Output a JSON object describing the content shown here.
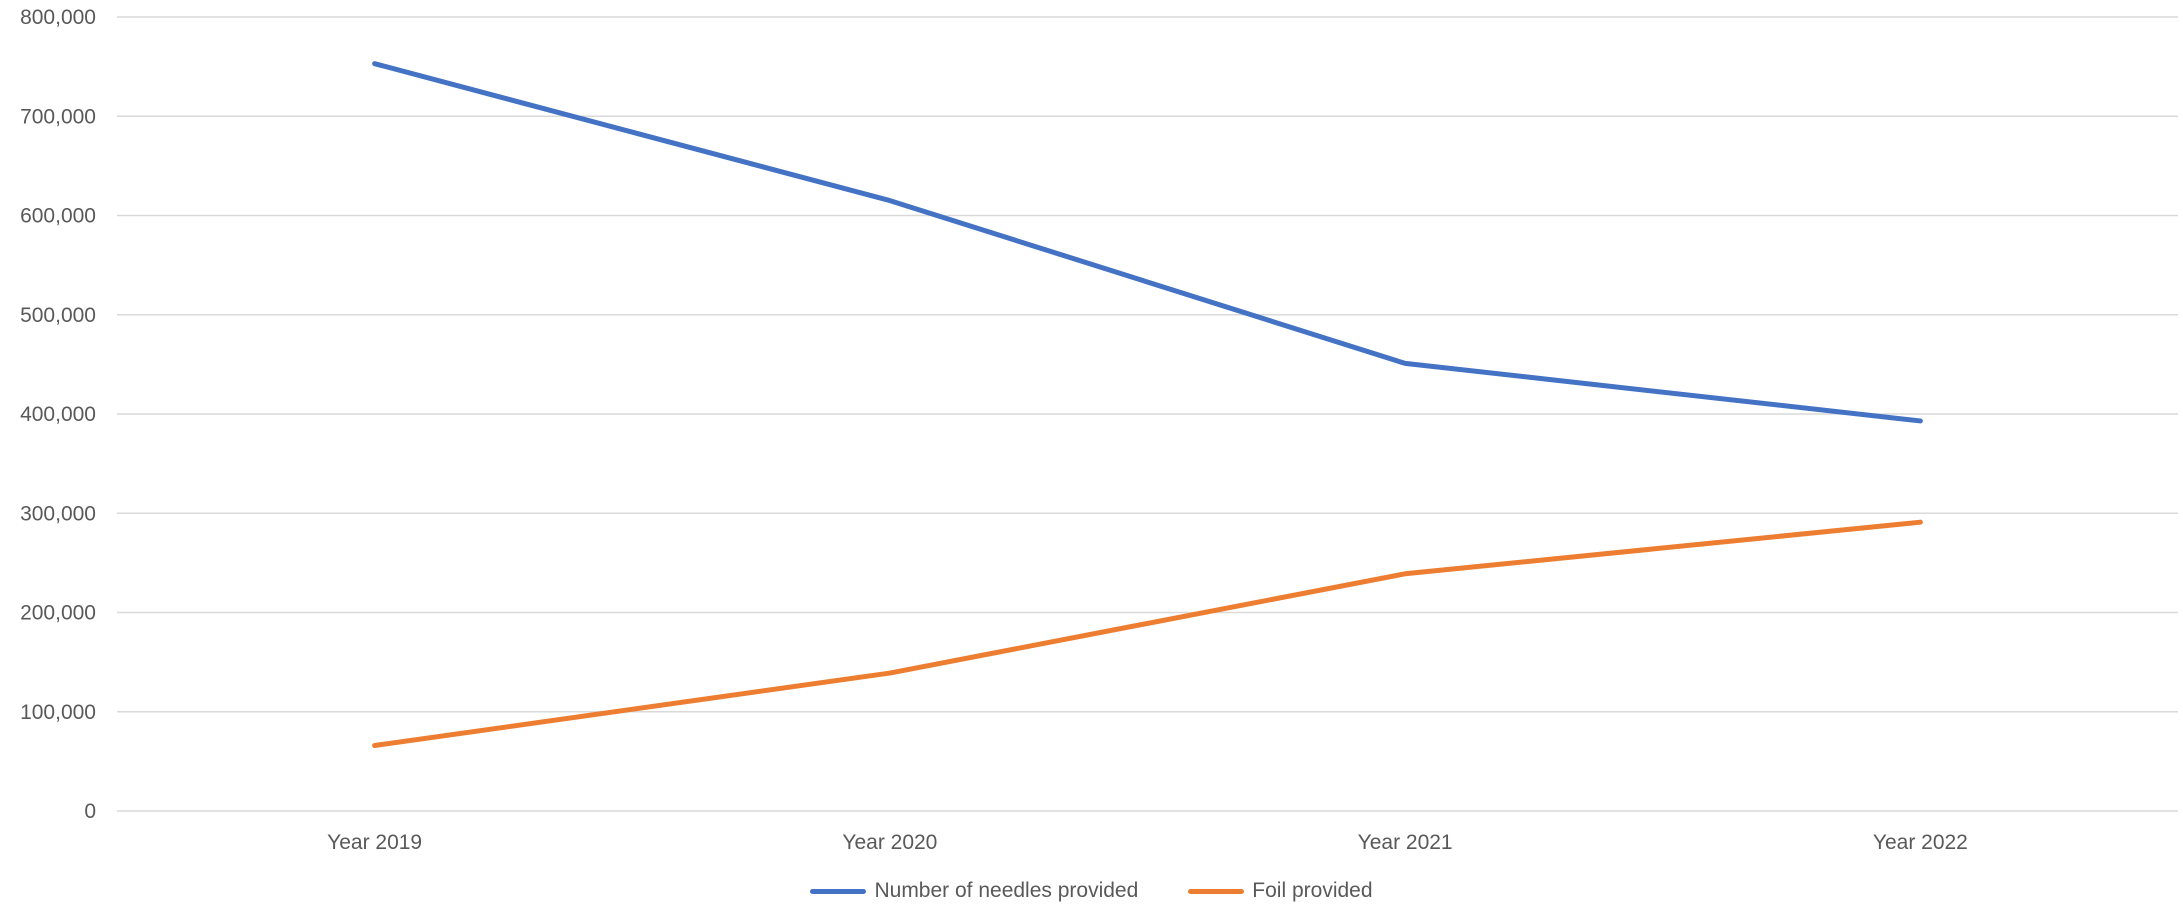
{
  "chart_data": {
    "type": "line",
    "categories": [
      "Year 2019",
      "Year 2020",
      "Year 2021",
      "Year 2022"
    ],
    "series": [
      {
        "name": "Number of needles provided",
        "color": "#4472C4",
        "values": [
          753000,
          615000,
          451000,
          393000
        ]
      },
      {
        "name": "Foil provided",
        "color": "#ED7D31",
        "values": [
          66000,
          139000,
          239000,
          291000
        ]
      }
    ],
    "y_ticks": [
      "0",
      "100,000",
      "200,000",
      "300,000",
      "400,000",
      "500,000",
      "600,000",
      "700,000",
      "800,000"
    ],
    "ylim": [
      0,
      800000
    ],
    "grid": true,
    "legend": "bottom",
    "title": "",
    "xlabel": "",
    "ylabel": ""
  }
}
